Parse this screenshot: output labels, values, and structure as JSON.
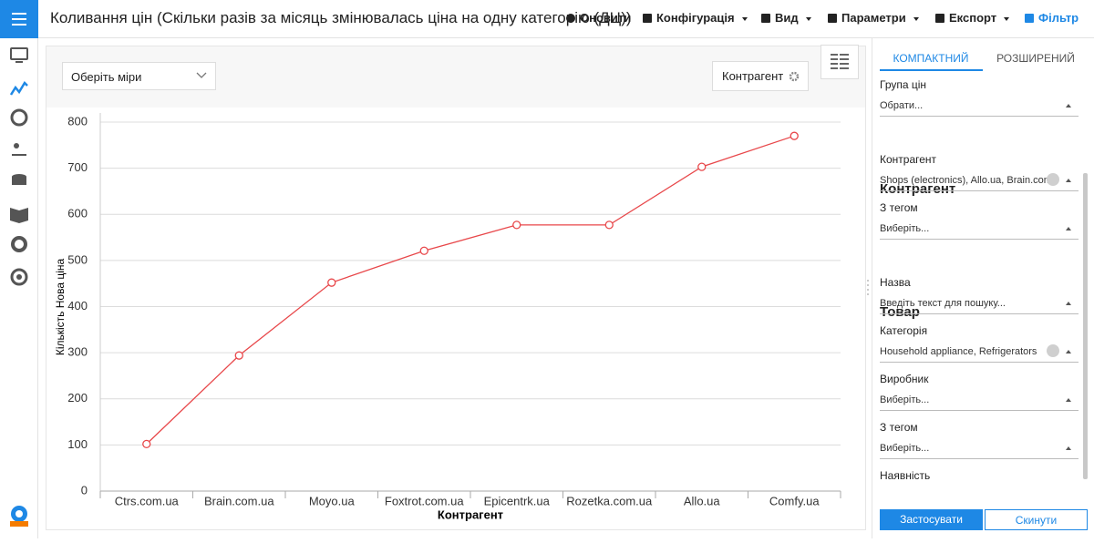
{
  "header": {
    "title": "Коливання цін (Скільки разів за місяць змінювалась ціна на одну категорію (ДЦ))",
    "buttons": [
      "Оновити",
      "Конфігурація",
      "Вид",
      "Параметри",
      "Експорт",
      "Фільтр"
    ]
  },
  "measures_select": "Оберіть міри",
  "group_button": "Контрагент",
  "chart_data": {
    "type": "line",
    "x_label": "Контрагент",
    "y_label": "Кількість Нова ціна",
    "categories": [
      "Ctrs.com.ua",
      "Brain.com.ua",
      "Moyo.ua",
      "Foxtrot.com.ua",
      "Epicentrk.ua",
      "Rozetka.com.ua",
      "Allo.ua",
      "Comfy.ua"
    ],
    "values": [
      102,
      294,
      452,
      521,
      577,
      577,
      703,
      770
    ],
    "color": "#e8474a",
    "ylim": [
      0,
      800
    ],
    "yticks": [
      0,
      100,
      200,
      300,
      400,
      500,
      600,
      700,
      800
    ],
    "grid": true
  },
  "filter_panel": {
    "tabs": [
      "КОМПАКТНИЙ",
      "РОЗШИРЕНИЙ"
    ],
    "items": [
      {
        "label": "Група цін",
        "value": "Обрати..."
      },
      {
        "heading": "Контрагент"
      },
      {
        "label": "Контрагент",
        "value": "Shops (electronics), Allo.ua, Brain.com...",
        "clearable": true
      },
      {
        "label": "З тегом",
        "value": "Виберіть..."
      },
      {
        "heading": "Товар"
      },
      {
        "label": "Назва",
        "value": "Введіть текст для пошуку..."
      },
      {
        "label": "Категорія",
        "value": "Household appliance, Refrigerators",
        "clearable": true
      },
      {
        "label": "Виробник",
        "value": "Виберіть..."
      },
      {
        "label": "З тегом",
        "value": "Виберіть..."
      },
      {
        "label": "Наявність"
      }
    ],
    "actions": [
      "Застосувати",
      "Скинути"
    ]
  }
}
